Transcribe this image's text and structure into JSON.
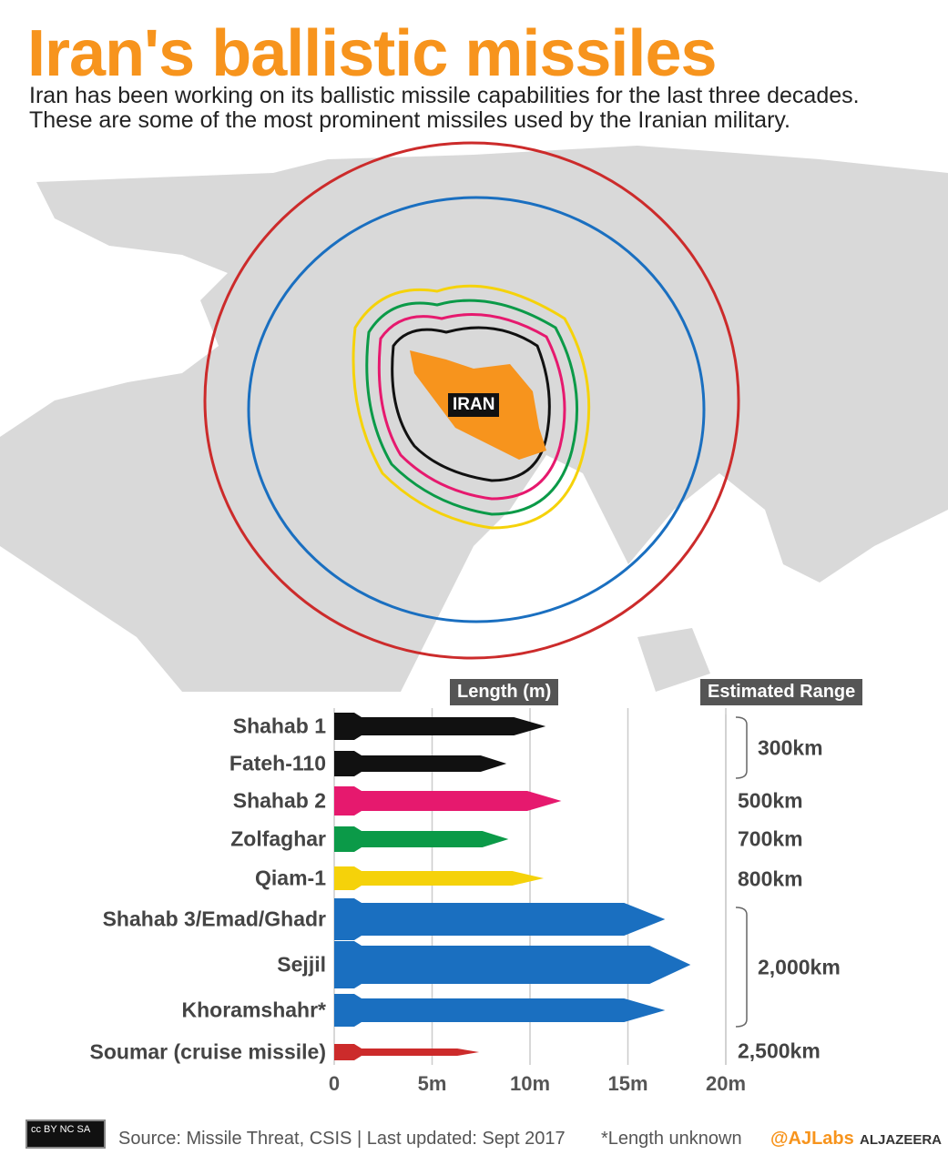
{
  "title": "Iran's ballistic missiles",
  "subtitle": "Iran has been working on its ballistic missile capabilities for the last three decades. These are some of the most prominent missiles used by the Iranian military.",
  "map": {
    "country_label": "IRAN",
    "country_color": "#f7941d",
    "range_ring_colors": {
      "300km": "#111111",
      "500km": "#e6196e",
      "700km": "#0b9a48",
      "800km": "#f5d20a",
      "2,000km": "#1a6fc0",
      "2,500km": "#cc2b2b"
    }
  },
  "chart_data": {
    "type": "bar",
    "xlabel": "Length (m)",
    "range_header": "Estimated Range",
    "xlim": [
      0,
      20
    ],
    "ticks": [
      "0",
      "5m",
      "10m",
      "15m",
      "20m"
    ],
    "grid": true,
    "categories": [
      "Shahab 1",
      "Fateh-110",
      "Shahab 2",
      "Zolfaghar",
      "Qiam-1",
      "Shahab 3/Emad/Ghadr",
      "Sejjil",
      "Khoramshahr*",
      "Soumar (cruise missile)"
    ],
    "values": [
      10.8,
      8.8,
      11.6,
      8.9,
      10.7,
      16.9,
      18.2,
      16.9,
      7.4
    ],
    "colors": [
      "#111111",
      "#111111",
      "#e6196e",
      "#0b9a48",
      "#f5d20a",
      "#1a6fc0",
      "#1a6fc0",
      "#1a6fc0",
      "#cc2b2b"
    ],
    "ranges": [
      "300km",
      "500km",
      "700km",
      "800km",
      "2,000km",
      "2,500km"
    ]
  },
  "footer": {
    "source": "Source: Missile Threat, CSIS | Last updated: Sept 2017",
    "note": "*Length unknown",
    "handle": "@AJLabs",
    "brand": "ALJAZEERA",
    "license": "cc BY NC SA"
  }
}
